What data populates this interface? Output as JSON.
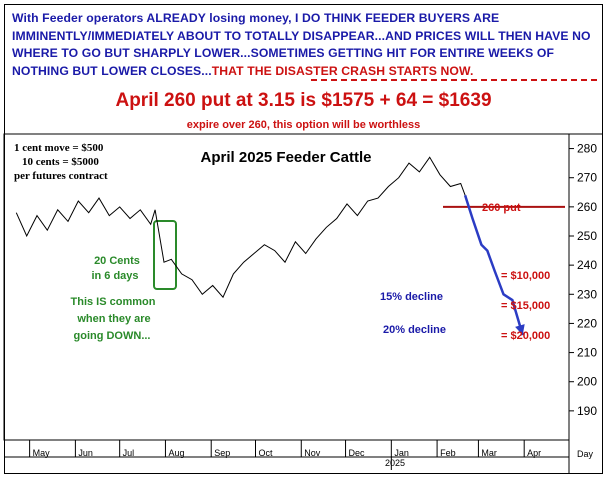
{
  "headline": {
    "main": "With Feeder operators ALREADY losing money, I DO THINK FEEDER BUYERS ARE IMMINENTLY/IMMEDIATELY ABOUT TO TOTALLY DISAPPEAR...AND PRICES WILL THEN HAVE NO WHERE TO GO BUT SHARPLY LOWER...SOMETIMES GETTING HIT FOR ENTIRE WEEKS OF NOTHING BUT LOWER CLOSES...",
    "tail": "THAT THE DISASTER CRASH STARTS NOW."
  },
  "offer": {
    "title": "April 260 put at 3.15 is $1575 + 64 = $1639",
    "subtitle": "expire over 260, this option will be worthless"
  },
  "notes": {
    "line1": "1 cent move = $500",
    "line2": "10 cents = $5000",
    "line3": "per futures contract"
  },
  "annotations": {
    "drop_label_1": "20 Cents",
    "drop_label_2": "in 6 days",
    "common_1": "This IS common",
    "common_2": "when they are",
    "common_3": "going DOWN...",
    "decline_15": "15% decline",
    "decline_20": "20% decline",
    "put_label": "260 put",
    "loss_10": "= $10,000",
    "loss_15": "= $15,000",
    "loss_20": "= $20,000"
  },
  "colors": {
    "headline_blue": "#1a1aa8",
    "red": "#cc1111",
    "green": "#2a8a2a",
    "price": "#000000",
    "projection": "#2b3cc4"
  },
  "chart_data": {
    "type": "line",
    "title": "April 2025 Feeder Cattle",
    "ylim": [
      180,
      285
    ],
    "yticks": [
      190,
      200,
      210,
      220,
      230,
      240,
      250,
      260,
      270,
      280
    ],
    "x_unit_label": "Day",
    "x_month_ticks": [
      "May",
      "Jun",
      "Jul",
      "Aug",
      "Sep",
      "Oct",
      "Nov",
      "Dec",
      "Jan",
      "Feb",
      "Mar",
      "Apr"
    ],
    "year_label": "2025",
    "grid": false,
    "series": [
      {
        "x": [
          "2024-04-22",
          "2024-04-29",
          "2024-05-06",
          "2024-05-13",
          "2024-05-20",
          "2024-05-27",
          "2024-06-03",
          "2024-06-10",
          "2024-06-17",
          "2024-06-24",
          "2024-07-01",
          "2024-07-08",
          "2024-07-15",
          "2024-07-22",
          "2024-07-25",
          "2024-07-31",
          "2024-08-05",
          "2024-08-12",
          "2024-08-19",
          "2024-08-26",
          "2024-09-02",
          "2024-09-09",
          "2024-09-16",
          "2024-09-23",
          "2024-09-30",
          "2024-10-07",
          "2024-10-14",
          "2024-10-21",
          "2024-10-28",
          "2024-11-04",
          "2024-11-11",
          "2024-11-18",
          "2024-11-25",
          "2024-12-02",
          "2024-12-09",
          "2024-12-16",
          "2024-12-23",
          "2024-12-30",
          "2025-01-06",
          "2025-01-13",
          "2025-01-20",
          "2025-01-27",
          "2025-02-03",
          "2025-02-10",
          "2025-02-17",
          "2025-02-20"
        ],
        "values": [
          258,
          250,
          257,
          252,
          259,
          255,
          262,
          258,
          263,
          257,
          260,
          256,
          259,
          254,
          259,
          241,
          242,
          237,
          235,
          230,
          233,
          229,
          237,
          241,
          244,
          247,
          245,
          241,
          248,
          244,
          249,
          253,
          256,
          261,
          257,
          262,
          263,
          267,
          270,
          275,
          272,
          277,
          271,
          267,
          268,
          264
        ]
      },
      {
        "x": [
          "2025-02-20",
          "2025-02-25",
          "2025-03-03",
          "2025-03-07",
          "2025-03-12",
          "2025-03-18",
          "2025-03-24",
          "2025-03-31"
        ],
        "values": [
          264,
          256,
          247,
          245,
          238,
          230,
          228,
          216
        ]
      }
    ],
    "hlines": [
      {
        "y": 260,
        "label": "260 put"
      }
    ]
  }
}
